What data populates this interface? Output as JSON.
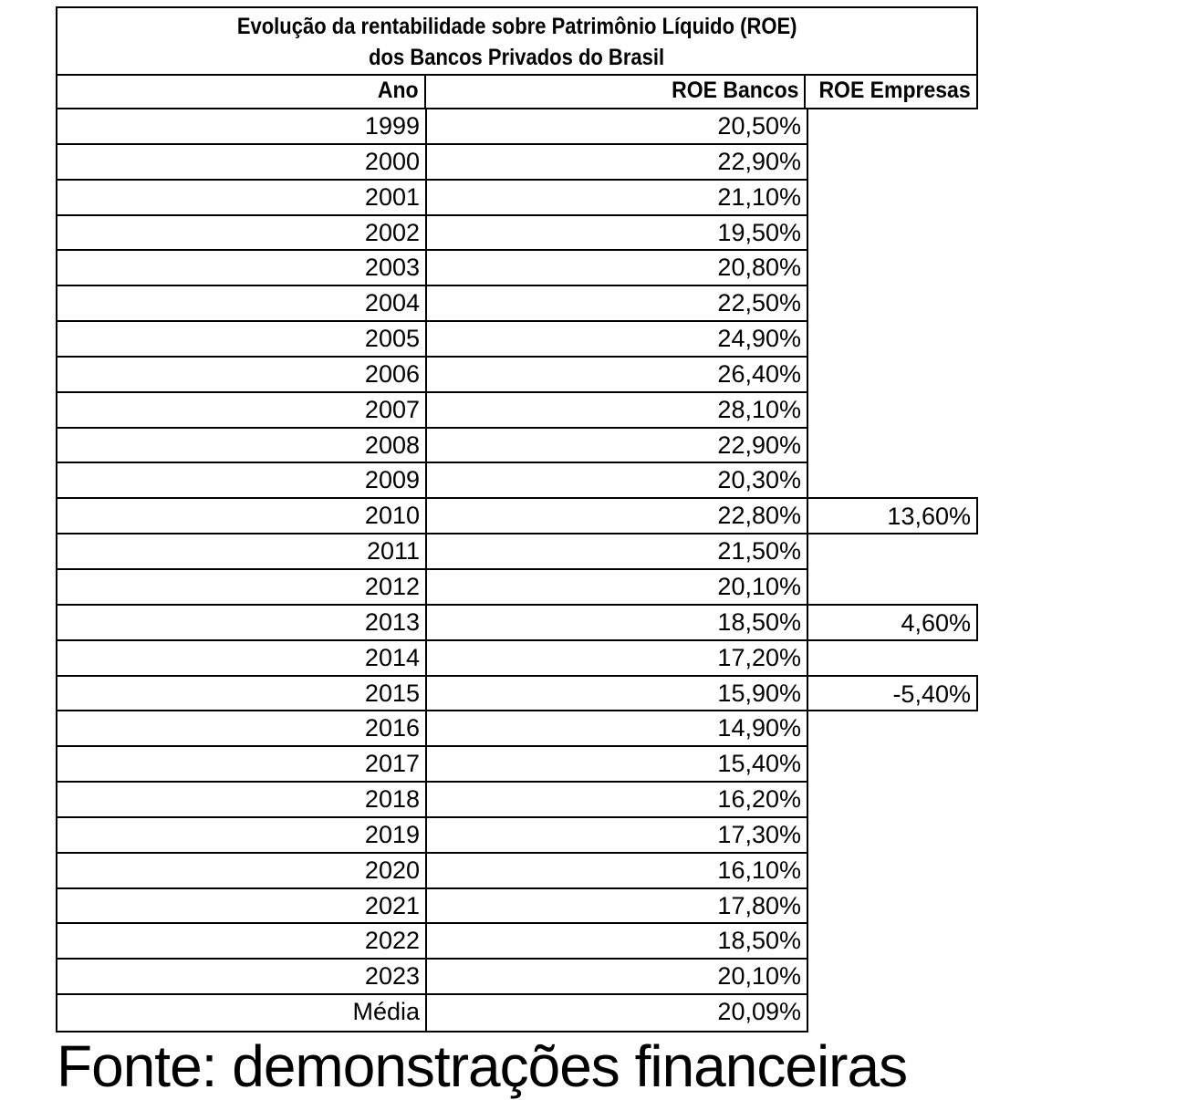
{
  "table": {
    "title_line1": "Evolução da rentabilidade sobre Patrimônio Líquido (ROE)",
    "title_line2": "dos Bancos Privados do Brasil",
    "headers": {
      "ano": "Ano",
      "bancos": "ROE Bancos",
      "empresas": "ROE Empresas"
    },
    "rows": [
      {
        "ano": "1999",
        "bancos": "20,50%"
      },
      {
        "ano": "2000",
        "bancos": "22,90%"
      },
      {
        "ano": "2001",
        "bancos": "21,10%"
      },
      {
        "ano": "2002",
        "bancos": "19,50%"
      },
      {
        "ano": "2003",
        "bancos": "20,80%"
      },
      {
        "ano": "2004",
        "bancos": "22,50%"
      },
      {
        "ano": "2005",
        "bancos": "24,90%"
      },
      {
        "ano": "2006",
        "bancos": "26,40%"
      },
      {
        "ano": "2007",
        "bancos": "28,10%"
      },
      {
        "ano": "2008",
        "bancos": "22,90%"
      },
      {
        "ano": "2009",
        "bancos": "20,30%"
      },
      {
        "ano": "2010",
        "bancos": "22,80%",
        "empresas": "13,60%"
      },
      {
        "ano": "2011",
        "bancos": "21,50%"
      },
      {
        "ano": "2012",
        "bancos": "20,10%"
      },
      {
        "ano": "2013",
        "bancos": "18,50%",
        "empresas": "4,60%"
      },
      {
        "ano": "2014",
        "bancos": "17,20%"
      },
      {
        "ano": "2015",
        "bancos": "15,90%",
        "empresas": "-5,40%"
      },
      {
        "ano": "2016",
        "bancos": "14,90%"
      },
      {
        "ano": "2017",
        "bancos": "15,40%"
      },
      {
        "ano": "2018",
        "bancos": "16,20%"
      },
      {
        "ano": "2019",
        "bancos": "17,30%"
      },
      {
        "ano": "2020",
        "bancos": "16,10%"
      },
      {
        "ano": "2021",
        "bancos": "17,80%"
      },
      {
        "ano": "2022",
        "bancos": "18,50%"
      },
      {
        "ano": "2023",
        "bancos": "20,10%"
      },
      {
        "ano": "Média",
        "bancos": "20,09%"
      }
    ]
  },
  "caption": {
    "text": "Fonte: demonstrações financeiras"
  },
  "colors": {
    "border": "#000000",
    "background": "#ffffff",
    "text": "#000000"
  },
  "chart_data": {
    "type": "table",
    "title": "Evolução da rentabilidade sobre Patrimônio Líquido (ROE) dos Bancos Privados do Brasil",
    "columns": [
      "Ano",
      "ROE Bancos",
      "ROE Empresas"
    ],
    "years": [
      "1999",
      "2000",
      "2001",
      "2002",
      "2003",
      "2004",
      "2005",
      "2006",
      "2007",
      "2008",
      "2009",
      "2010",
      "2011",
      "2012",
      "2013",
      "2014",
      "2015",
      "2016",
      "2017",
      "2018",
      "2019",
      "2020",
      "2021",
      "2022",
      "2023",
      "Média"
    ],
    "roe_bancos_pct": [
      20.5,
      22.9,
      21.1,
      19.5,
      20.8,
      22.5,
      24.9,
      26.4,
      28.1,
      22.9,
      20.3,
      22.8,
      21.5,
      20.1,
      18.5,
      17.2,
      15.9,
      14.9,
      15.4,
      16.2,
      17.3,
      16.1,
      17.8,
      18.5,
      20.1,
      20.09
    ],
    "roe_empresas_pct": {
      "2010": 13.6,
      "2013": 4.6,
      "2015": -5.4
    },
    "value_format": "percent, Brazilian decimal comma",
    "layout": "title box spans all columns; ROE Empresas column only has bordered cells for 2010, 2013 and 2015; grid on"
  }
}
